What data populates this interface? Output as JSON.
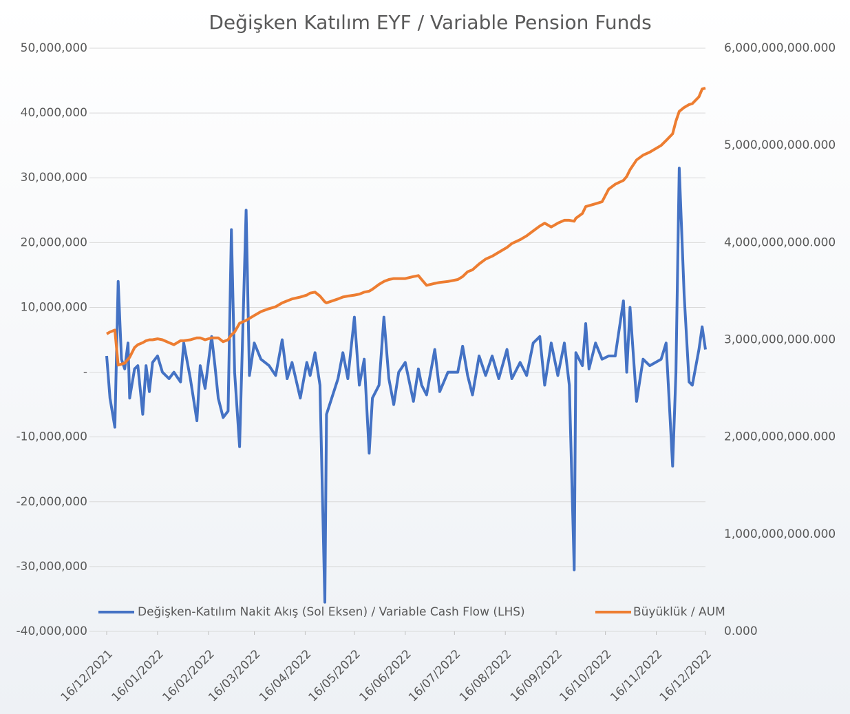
{
  "chart_data": {
    "type": "line",
    "title": "Değişken Katılım EYF / Variable Pension Funds",
    "x": [
      "16/12/2021",
      "18/12/2021",
      "21/12/2021",
      "23/12/2021",
      "25/12/2021",
      "27/12/2021",
      "29/12/2021",
      "30/12/2021",
      "02/01/2022",
      "04/01/2022",
      "07/01/2022",
      "09/01/2022",
      "11/01/2022",
      "13/01/2022",
      "16/01/2022",
      "19/01/2022",
      "23/01/2022",
      "26/01/2022",
      "30/01/2022",
      "01/02/2022",
      "05/02/2022",
      "09/02/2022",
      "11/02/2022",
      "14/02/2022",
      "18/02/2022",
      "20/02/2022",
      "22/02/2022",
      "25/02/2022",
      "28/02/2022",
      "02/03/2022",
      "04/03/2022",
      "07/03/2022",
      "11/03/2022",
      "13/03/2022",
      "16/03/2022",
      "20/03/2022",
      "25/03/2022",
      "29/03/2022",
      "02/04/2022",
      "05/04/2022",
      "08/04/2022",
      "13/04/2022",
      "17/04/2022",
      "19/04/2022",
      "22/04/2022",
      "25/04/2022",
      "28/04/2022",
      "29/04/2022",
      "06/05/2022",
      "09/05/2022",
      "12/05/2022",
      "16/05/2022",
      "19/05/2022",
      "22/05/2022",
      "25/05/2022",
      "27/05/2022",
      "31/05/2022",
      "03/06/2022",
      "06/06/2022",
      "09/06/2022",
      "12/06/2022",
      "16/06/2022",
      "21/06/2022",
      "24/06/2022",
      "26/06/2022",
      "29/06/2022",
      "04/07/2022",
      "07/07/2022",
      "12/07/2022",
      "18/07/2022",
      "21/07/2022",
      "24/07/2022",
      "27/07/2022",
      "31/07/2022",
      "04/08/2022",
      "08/08/2022",
      "12/08/2022",
      "17/08/2022",
      "20/08/2022",
      "25/08/2022",
      "29/08/2022",
      "02/09/2022",
      "06/09/2022",
      "09/09/2022",
      "13/09/2022",
      "17/09/2022",
      "21/09/2022",
      "24/09/2022",
      "27/09/2022",
      "28/09/2022",
      "02/10/2022",
      "04/10/2022",
      "06/10/2022",
      "10/10/2022",
      "14/10/2022",
      "18/10/2022",
      "22/10/2022",
      "27/10/2022",
      "29/10/2022",
      "31/10/2022",
      "04/11/2022",
      "08/11/2022",
      "12/11/2022",
      "19/11/2022",
      "22/11/2022",
      "26/11/2022",
      "28/11/2022",
      "30/11/2022",
      "03/12/2022",
      "06/12/2022",
      "08/12/2022",
      "12/12/2022",
      "14/12/2022",
      "16/12/2022"
    ],
    "series": [
      {
        "name": "Değişken-Katılım Nakit Akış (Sol Eksen) / Variable Cash Flow (LHS)",
        "color": "#4472c4",
        "values": [
          2500000,
          -4000000,
          -8500000,
          14000000,
          2000000,
          500000,
          4500000,
          -4000000,
          500000,
          1000000,
          -6500000,
          1000000,
          -3000000,
          1500000,
          2500000,
          0,
          -1000000,
          0,
          -1500000,
          4500000,
          -1000000,
          -7500000,
          1000000,
          -2500000,
          5500000,
          1000000,
          -4000000,
          -7000000,
          -6000000,
          22000000,
          0,
          -11500000,
          25000000,
          -500000,
          4500000,
          2000000,
          1000000,
          -500000,
          5000000,
          -1000000,
          1500000,
          -4000000,
          1500000,
          -500000,
          3000000,
          -2000000,
          -35500000,
          -6500000,
          -1000000,
          3000000,
          -1000000,
          8500000,
          -2000000,
          2000000,
          -12500000,
          -4000000,
          -2000000,
          8500000,
          -1000000,
          -5000000,
          0,
          1500000,
          -4500000,
          500000,
          -2000000,
          -3500000,
          3500000,
          -3000000,
          0,
          0,
          4000000,
          -500000,
          -3500000,
          2500000,
          -500000,
          2500000,
          -1000000,
          3500000,
          -1000000,
          1500000,
          -500000,
          4500000,
          5500000,
          -2000000,
          4500000,
          -500000,
          4500000,
          -2000000,
          -30500000,
          3000000,
          1000000,
          7500000,
          500000,
          4500000,
          2000000,
          2500000,
          2500000,
          11000000,
          0,
          10000000,
          -4500000,
          2000000,
          1000000,
          2000000,
          4500000,
          -14500000,
          0,
          31500000,
          12000000,
          -1500000,
          -2000000,
          3500000,
          7000000,
          3500000
        ]
      },
      {
        "name": "Büyüklük / AUM",
        "color": "#ed7d31",
        "axis": "y2",
        "values": [
          3060000000,
          3080000000,
          3100000000,
          2740000000,
          2750000000,
          2760000000,
          2800000000,
          2820000000,
          2920000000,
          2950000000,
          2970000000,
          2990000000,
          3000000000,
          3000000000,
          3010000000,
          3000000000,
          2970000000,
          2950000000,
          2990000000,
          2990000000,
          3000000000,
          3020000000,
          3020000000,
          3000000000,
          3020000000,
          3020000000,
          3020000000,
          2980000000,
          3000000000,
          3050000000,
          3080000000,
          3170000000,
          3200000000,
          3220000000,
          3250000000,
          3290000000,
          3320000000,
          3340000000,
          3380000000,
          3400000000,
          3420000000,
          3440000000,
          3460000000,
          3480000000,
          3490000000,
          3450000000,
          3390000000,
          3380000000,
          3420000000,
          3440000000,
          3450000000,
          3460000000,
          3470000000,
          3490000000,
          3500000000,
          3520000000,
          3570000000,
          3600000000,
          3620000000,
          3630000000,
          3630000000,
          3630000000,
          3650000000,
          3660000000,
          3620000000,
          3560000000,
          3580000000,
          3590000000,
          3600000000,
          3620000000,
          3650000000,
          3700000000,
          3720000000,
          3780000000,
          3830000000,
          3860000000,
          3900000000,
          3950000000,
          3990000000,
          4030000000,
          4070000000,
          4120000000,
          4170000000,
          4200000000,
          4160000000,
          4200000000,
          4230000000,
          4230000000,
          4220000000,
          4250000000,
          4300000000,
          4370000000,
          4380000000,
          4400000000,
          4420000000,
          4550000000,
          4600000000,
          4640000000,
          4680000000,
          4750000000,
          4850000000,
          4900000000,
          4930000000,
          5000000000,
          5050000000,
          5120000000,
          5250000000,
          5350000000,
          5390000000,
          5420000000,
          5430000000,
          5500000000,
          5580000000,
          5590000000
        ]
      }
    ],
    "xlim": [
      "16/12/2021",
      "16/12/2022"
    ],
    "xticks": [
      "16/12/2021",
      "16/01/2022",
      "16/02/2022",
      "16/03/2022",
      "16/04/2022",
      "16/05/2022",
      "16/06/2022",
      "16/07/2022",
      "16/08/2022",
      "16/09/2022",
      "16/10/2022",
      "16/11/2022",
      "16/12/2022"
    ],
    "ylim": [
      -40000000,
      50000000
    ],
    "yticks": [
      {
        "value": -40000000,
        "label": "-40,000,000"
      },
      {
        "value": -30000000,
        "label": "-30,000,000"
      },
      {
        "value": -20000000,
        "label": "-20,000,000"
      },
      {
        "value": -10000000,
        "label": "-10,000,000"
      },
      {
        "value": 0,
        "label": "-"
      },
      {
        "value": 10000000,
        "label": "10,000,000"
      },
      {
        "value": 20000000,
        "label": "20,000,000"
      },
      {
        "value": 30000000,
        "label": "30,000,000"
      },
      {
        "value": 40000000,
        "label": "40,000,000"
      },
      {
        "value": 50000000,
        "label": "50,000,000"
      }
    ],
    "y2lim": [
      0,
      6000000000
    ],
    "y2ticks": [
      {
        "value": 0,
        "label": "0.000"
      },
      {
        "value": 1000000000,
        "label": "1,000,000,000.000"
      },
      {
        "value": 2000000000,
        "label": "2,000,000,000.000"
      },
      {
        "value": 3000000000,
        "label": "3,000,000,000.000"
      },
      {
        "value": 4000000000,
        "label": "4,000,000,000.000"
      },
      {
        "value": 5000000000,
        "label": "5,000,000,000.000"
      },
      {
        "value": 6000000000,
        "label": "6,000,000,000.000"
      }
    ],
    "grid": true,
    "legend": "bottom"
  }
}
